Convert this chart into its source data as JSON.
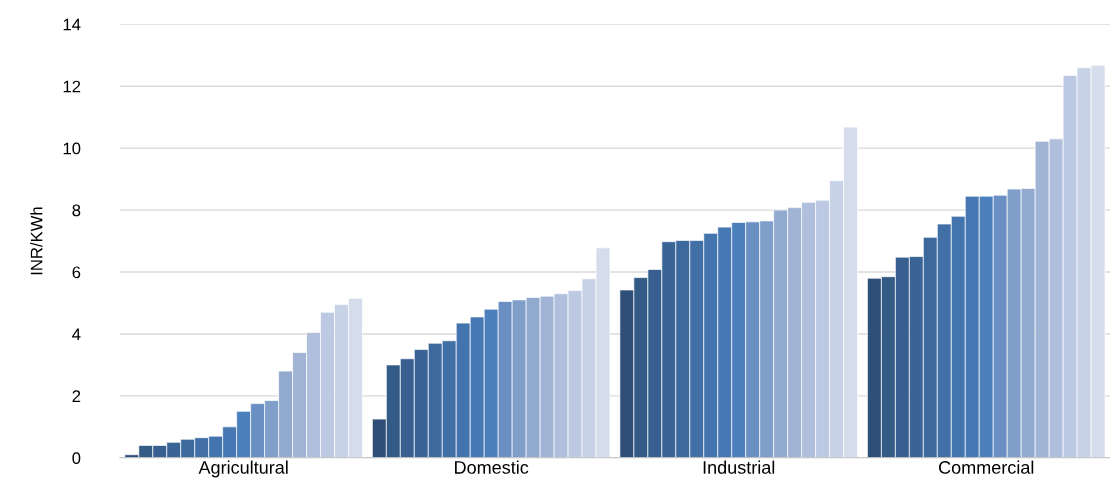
{
  "chart_data": {
    "type": "bar",
    "ylabel": "INR/KWh",
    "categories": [
      "Agricultural",
      "Domestic",
      "Industrial",
      "Commercial"
    ],
    "series": [
      {
        "color": "#2f4f78",
        "values": [
          0.1,
          1.25,
          5.42,
          5.8
        ]
      },
      {
        "color": "#345a86",
        "values": [
          0.4,
          3.0,
          5.82,
          5.85
        ]
      },
      {
        "color": "#385f8f",
        "values": [
          0.4,
          3.2,
          6.08,
          6.48
        ]
      },
      {
        "color": "#3b6496",
        "values": [
          0.5,
          3.5,
          6.98,
          6.5
        ]
      },
      {
        "color": "#3d6a9e",
        "values": [
          0.6,
          3.7,
          7.02,
          7.12
        ]
      },
      {
        "color": "#416fa6",
        "values": [
          0.65,
          3.78,
          7.02,
          7.55
        ]
      },
      {
        "color": "#4474ad",
        "values": [
          0.7,
          4.35,
          7.25,
          7.8
        ]
      },
      {
        "color": "#4878b3",
        "values": [
          1.0,
          4.55,
          7.45,
          8.45
        ]
      },
      {
        "color": "#4c80bd",
        "values": [
          1.5,
          4.8,
          7.6,
          8.45
        ]
      },
      {
        "color": "#6a90c3",
        "values": [
          1.75,
          5.05,
          7.62,
          8.48
        ]
      },
      {
        "color": "#7f9ec9",
        "values": [
          1.85,
          5.1,
          7.65,
          8.68
        ]
      },
      {
        "color": "#93aacf",
        "values": [
          2.8,
          5.18,
          8.0,
          8.7
        ]
      },
      {
        "color": "#a2b4d6",
        "values": [
          3.4,
          5.22,
          8.08,
          10.22
        ]
      },
      {
        "color": "#b0c0dc",
        "values": [
          4.05,
          5.3,
          8.25,
          10.3
        ]
      },
      {
        "color": "#bdc9e2",
        "values": [
          4.7,
          5.4,
          8.32,
          12.35
        ]
      },
      {
        "color": "#c8d2e7",
        "values": [
          4.95,
          5.78,
          8.95,
          12.6
        ]
      },
      {
        "color": "#d5dcec",
        "values": [
          5.15,
          6.78,
          10.68,
          12.68
        ]
      }
    ],
    "ylim": [
      0,
      14
    ],
    "yticks": [
      0,
      2,
      4,
      6,
      8,
      10,
      12,
      14
    ],
    "grid": "y",
    "legend": false
  }
}
